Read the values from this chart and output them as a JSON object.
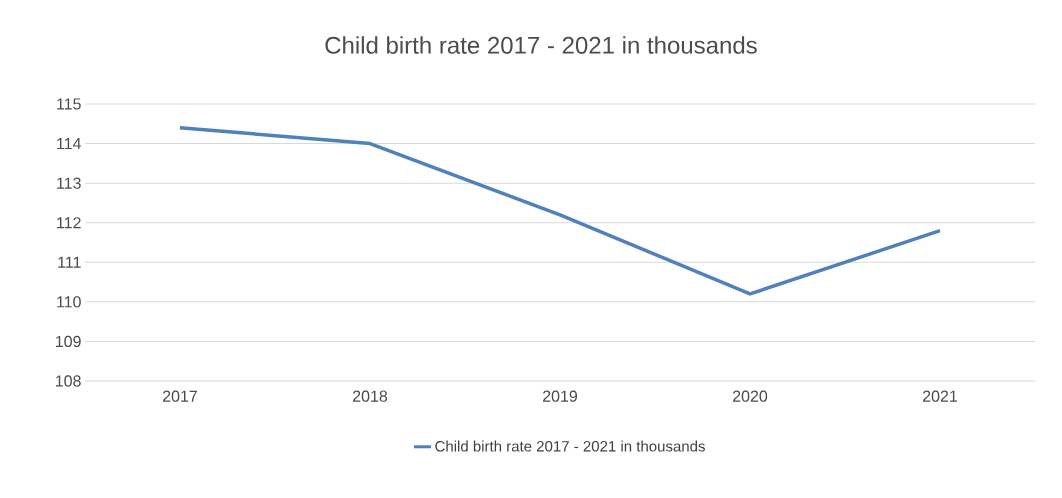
{
  "chart_data": {
    "type": "line",
    "title": "Child birth rate 2017 - 2021 in thousands",
    "categories": [
      "2017",
      "2018",
      "2019",
      "2020",
      "2021"
    ],
    "series": [
      {
        "name": "Child birth rate 2017 - 2021 in thousands",
        "color": "#4f81bd",
        "values": [
          114.4,
          114.0,
          112.2,
          110.2,
          111.8
        ]
      }
    ],
    "ylim": [
      108,
      115
    ],
    "yticks": [
      108,
      109,
      110,
      111,
      112,
      113,
      114,
      115
    ],
    "grid": "y",
    "legend": "bottom"
  }
}
